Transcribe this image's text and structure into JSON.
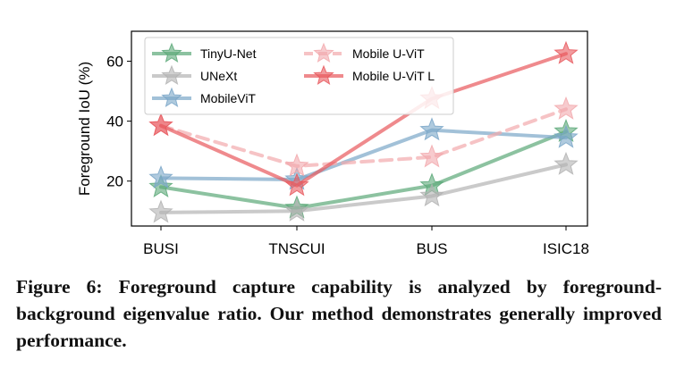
{
  "chart_data": {
    "type": "line",
    "title": "",
    "xlabel": "",
    "ylabel": "Foreground IoU (%)",
    "categories": [
      "BUSI",
      "TNSCUI",
      "BUS",
      "ISIC18"
    ],
    "ylim": [
      5,
      70
    ],
    "yticks": [
      20,
      40,
      60
    ],
    "grid": false,
    "legend_position": "top-left",
    "series": [
      {
        "name": "TinyU-Net",
        "values": [
          18,
          11,
          18.5,
          36.5
        ],
        "color": "#5ba878",
        "dashed": false
      },
      {
        "name": "UNeXt",
        "values": [
          9.5,
          10,
          15,
          25.5
        ],
        "color": "#b3b3b3",
        "dashed": false
      },
      {
        "name": "MobileViT",
        "values": [
          21,
          20.5,
          37,
          34.5
        ],
        "color": "#7aa6c8",
        "dashed": false
      },
      {
        "name": "Mobile U-ViT",
        "values": [
          38.5,
          25,
          28,
          44
        ],
        "color": "#f2a9ad",
        "dashed": true
      },
      {
        "name": "Mobile U-ViT L",
        "values": [
          38.5,
          18.5,
          47.5,
          62.5
        ],
        "color": "#e8585d",
        "dashed": false
      }
    ]
  },
  "caption": "Figure 6: Foreground capture capability is analyzed by foreground-background eigenvalue ratio. Our method demonstrates generally improved performance."
}
